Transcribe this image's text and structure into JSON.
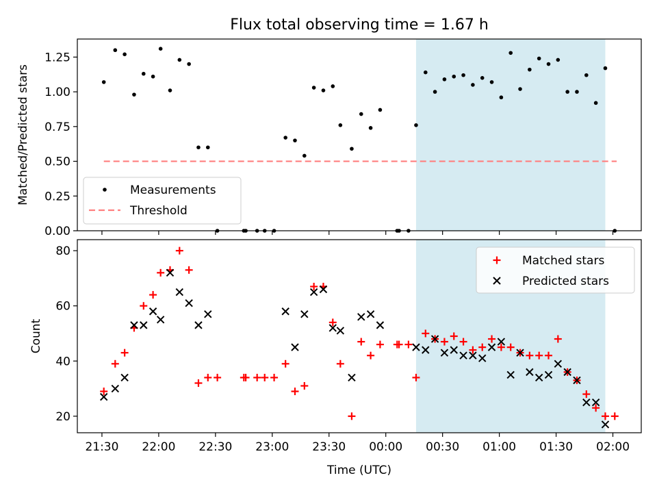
{
  "title": "Flux total observing time = 1.67 h",
  "colors": {
    "highlight": "#add8e6",
    "matched": "#ff0000",
    "predicted": "#000000",
    "measurement": "#000000",
    "threshold": "#ff7f7f"
  },
  "chart_data": [
    {
      "type": "scatter",
      "name": "ratio-panel",
      "ylabel": "Matched/Predicted stars",
      "ylim": [
        0,
        1.38
      ],
      "yticks": [
        0,
        0.25,
        0.5,
        0.75,
        1.0,
        1.25
      ],
      "ytick_labels": [
        "0.00",
        "0.25",
        "0.50",
        "0.75",
        "1.00",
        "1.25"
      ],
      "legend": {
        "placement": "lower-left",
        "entries": [
          "Measurements",
          "Threshold"
        ]
      },
      "series": [
        {
          "name": "Measurements",
          "marker": "dot",
          "points": [
            [
              "21:31",
              1.07
            ],
            [
              "21:37",
              1.3
            ],
            [
              "21:42",
              1.27
            ],
            [
              "21:47",
              0.98
            ],
            [
              "21:52",
              1.13
            ],
            [
              "21:57",
              1.11
            ],
            [
              "22:01",
              1.31
            ],
            [
              "22:06",
              1.01
            ],
            [
              "22:11",
              1.23
            ],
            [
              "22:16",
              1.2
            ],
            [
              "22:21",
              0.6
            ],
            [
              "22:26",
              0.6
            ],
            [
              "22:31",
              0.0
            ],
            [
              "22:45",
              0.0
            ],
            [
              "22:46",
              0.0
            ],
            [
              "22:52",
              0.0
            ],
            [
              "22:56",
              0.0
            ],
            [
              "23:01",
              0.0
            ],
            [
              "23:07",
              0.67
            ],
            [
              "23:12",
              0.65
            ],
            [
              "23:17",
              0.54
            ],
            [
              "23:22",
              1.03
            ],
            [
              "23:27",
              1.01
            ],
            [
              "23:32",
              1.04
            ],
            [
              "23:36",
              0.76
            ],
            [
              "23:42",
              0.59
            ],
            [
              "23:47",
              0.84
            ],
            [
              "23:52",
              0.74
            ],
            [
              "23:57",
              0.87
            ],
            [
              "00:06",
              0.0
            ],
            [
              "00:07",
              0.0
            ],
            [
              "00:12",
              0.0
            ],
            [
              "00:16",
              0.76
            ],
            [
              "00:21",
              1.14
            ],
            [
              "00:26",
              1.0
            ],
            [
              "00:31",
              1.09
            ],
            [
              "00:36",
              1.11
            ],
            [
              "00:41",
              1.12
            ],
            [
              "00:46",
              1.05
            ],
            [
              "00:51",
              1.1
            ],
            [
              "00:56",
              1.07
            ],
            [
              "01:01",
              0.96
            ],
            [
              "01:06",
              1.28
            ],
            [
              "01:11",
              1.02
            ],
            [
              "01:16",
              1.16
            ],
            [
              "01:21",
              1.24
            ],
            [
              "01:26",
              1.2
            ],
            [
              "01:31",
              1.23
            ],
            [
              "01:36",
              1.0
            ],
            [
              "01:41",
              1.0
            ],
            [
              "01:46",
              1.12
            ],
            [
              "01:51",
              0.92
            ],
            [
              "01:56",
              1.17
            ],
            [
              "02:01",
              0.0
            ]
          ]
        },
        {
          "name": "Threshold",
          "style": "dashed-line",
          "points": [
            [
              "21:31",
              0.5
            ],
            [
              "02:02",
              0.5
            ]
          ]
        }
      ]
    },
    {
      "type": "scatter",
      "name": "count-panel",
      "xlabel": "Time (UTC)",
      "ylabel": "Count",
      "ylim": [
        14,
        84
      ],
      "yticks": [
        20,
        40,
        60,
        80
      ],
      "ytick_labels": [
        "20",
        "40",
        "60",
        "80"
      ],
      "xticks": [
        "21:30",
        "22:00",
        "22:30",
        "23:00",
        "23:30",
        "00:00",
        "00:30",
        "01:00",
        "01:30",
        "02:00"
      ],
      "legend": {
        "placement": "top-right",
        "entries": [
          "Matched stars",
          "Predicted stars"
        ]
      },
      "series": [
        {
          "name": "Matched stars",
          "marker": "plus",
          "points": [
            [
              "21:31",
              29
            ],
            [
              "21:37",
              39
            ],
            [
              "21:42",
              43
            ],
            [
              "21:47",
              52
            ],
            [
              "21:52",
              60
            ],
            [
              "21:57",
              64
            ],
            [
              "22:01",
              72
            ],
            [
              "22:06",
              73
            ],
            [
              "22:11",
              80
            ],
            [
              "22:16",
              73
            ],
            [
              "22:21",
              32
            ],
            [
              "22:26",
              34
            ],
            [
              "22:31",
              34
            ],
            [
              "22:45",
              34
            ],
            [
              "22:46",
              34
            ],
            [
              "22:52",
              34
            ],
            [
              "22:56",
              34
            ],
            [
              "23:01",
              34
            ],
            [
              "23:07",
              39
            ],
            [
              "23:12",
              29
            ],
            [
              "23:17",
              31
            ],
            [
              "23:22",
              67
            ],
            [
              "23:27",
              67
            ],
            [
              "23:32",
              54
            ],
            [
              "23:36",
              39
            ],
            [
              "23:42",
              20
            ],
            [
              "23:47",
              47
            ],
            [
              "23:52",
              42
            ],
            [
              "23:57",
              46
            ],
            [
              "00:06",
              46
            ],
            [
              "00:07",
              46
            ],
            [
              "00:12",
              46
            ],
            [
              "00:16",
              34
            ],
            [
              "00:21",
              50
            ],
            [
              "00:26",
              48
            ],
            [
              "00:31",
              47
            ],
            [
              "00:36",
              49
            ],
            [
              "00:41",
              47
            ],
            [
              "00:46",
              44
            ],
            [
              "00:51",
              45
            ],
            [
              "00:56",
              48
            ],
            [
              "01:01",
              45
            ],
            [
              "01:06",
              45
            ],
            [
              "01:11",
              43
            ],
            [
              "01:16",
              42
            ],
            [
              "01:21",
              42
            ],
            [
              "01:26",
              42
            ],
            [
              "01:31",
              48
            ],
            [
              "01:36",
              36
            ],
            [
              "01:41",
              33
            ],
            [
              "01:46",
              28
            ],
            [
              "01:51",
              23
            ],
            [
              "01:56",
              20
            ],
            [
              "02:01",
              20
            ]
          ]
        },
        {
          "name": "Predicted stars",
          "marker": "x",
          "points": [
            [
              "21:31",
              27
            ],
            [
              "21:37",
              30
            ],
            [
              "21:42",
              34
            ],
            [
              "21:47",
              53
            ],
            [
              "21:52",
              53
            ],
            [
              "21:57",
              58
            ],
            [
              "22:01",
              55
            ],
            [
              "22:06",
              72
            ],
            [
              "22:11",
              65
            ],
            [
              "22:16",
              61
            ],
            [
              "22:21",
              53
            ],
            [
              "22:26",
              57
            ],
            [
              "23:07",
              58
            ],
            [
              "23:12",
              45
            ],
            [
              "23:17",
              57
            ],
            [
              "23:22",
              65
            ],
            [
              "23:27",
              66
            ],
            [
              "23:32",
              52
            ],
            [
              "23:36",
              51
            ],
            [
              "23:42",
              34
            ],
            [
              "23:47",
              56
            ],
            [
              "23:52",
              57
            ],
            [
              "23:57",
              53
            ],
            [
              "00:16",
              45
            ],
            [
              "00:21",
              44
            ],
            [
              "00:26",
              48
            ],
            [
              "00:31",
              43
            ],
            [
              "00:36",
              44
            ],
            [
              "00:41",
              42
            ],
            [
              "00:46",
              42
            ],
            [
              "00:51",
              41
            ],
            [
              "00:56",
              45
            ],
            [
              "01:01",
              47
            ],
            [
              "01:06",
              35
            ],
            [
              "01:11",
              43
            ],
            [
              "01:16",
              36
            ],
            [
              "01:21",
              34
            ],
            [
              "01:26",
              35
            ],
            [
              "01:31",
              39
            ],
            [
              "01:36",
              36
            ],
            [
              "01:41",
              33
            ],
            [
              "01:46",
              25
            ],
            [
              "01:51",
              25
            ],
            [
              "01:56",
              17
            ]
          ]
        }
      ]
    }
  ],
  "shaded_interval": [
    "00:16",
    "01:56"
  ],
  "x_range": [
    "21:17",
    "02:15"
  ]
}
